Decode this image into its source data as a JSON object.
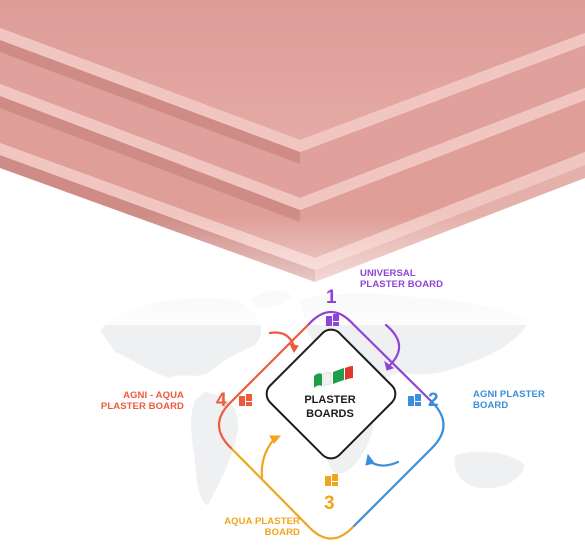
{
  "center": {
    "line1": "PLASTER",
    "line2": "BOARDS"
  },
  "nodes": [
    {
      "number": "1",
      "label_line1": "UNIVERSAL",
      "label_line2": "PLASTER BOARD",
      "color": "#8e44d6"
    },
    {
      "number": "2",
      "label_line1": "AGNI PLASTER",
      "label_line2": "BOARD",
      "color": "#3a8fdb"
    },
    {
      "number": "3",
      "label_line1": "AQUA PLASTER",
      "label_line2": "BOARD",
      "color": "#f0a51c"
    },
    {
      "number": "4",
      "label_line1": "AGNI - AQUA",
      "label_line2": "PLASTER BOARD",
      "color": "#ef5a3c"
    }
  ],
  "colors": {
    "board_top": "#e0a09b",
    "board_edge_light": "#f0c2bc",
    "board_edge_dark": "#c9847f",
    "map": "#eef0f2",
    "flag_green": "#1e9e4a",
    "flag_red": "#e0362c"
  },
  "icons": [
    "flag-icon",
    "board-sheet-icon"
  ]
}
